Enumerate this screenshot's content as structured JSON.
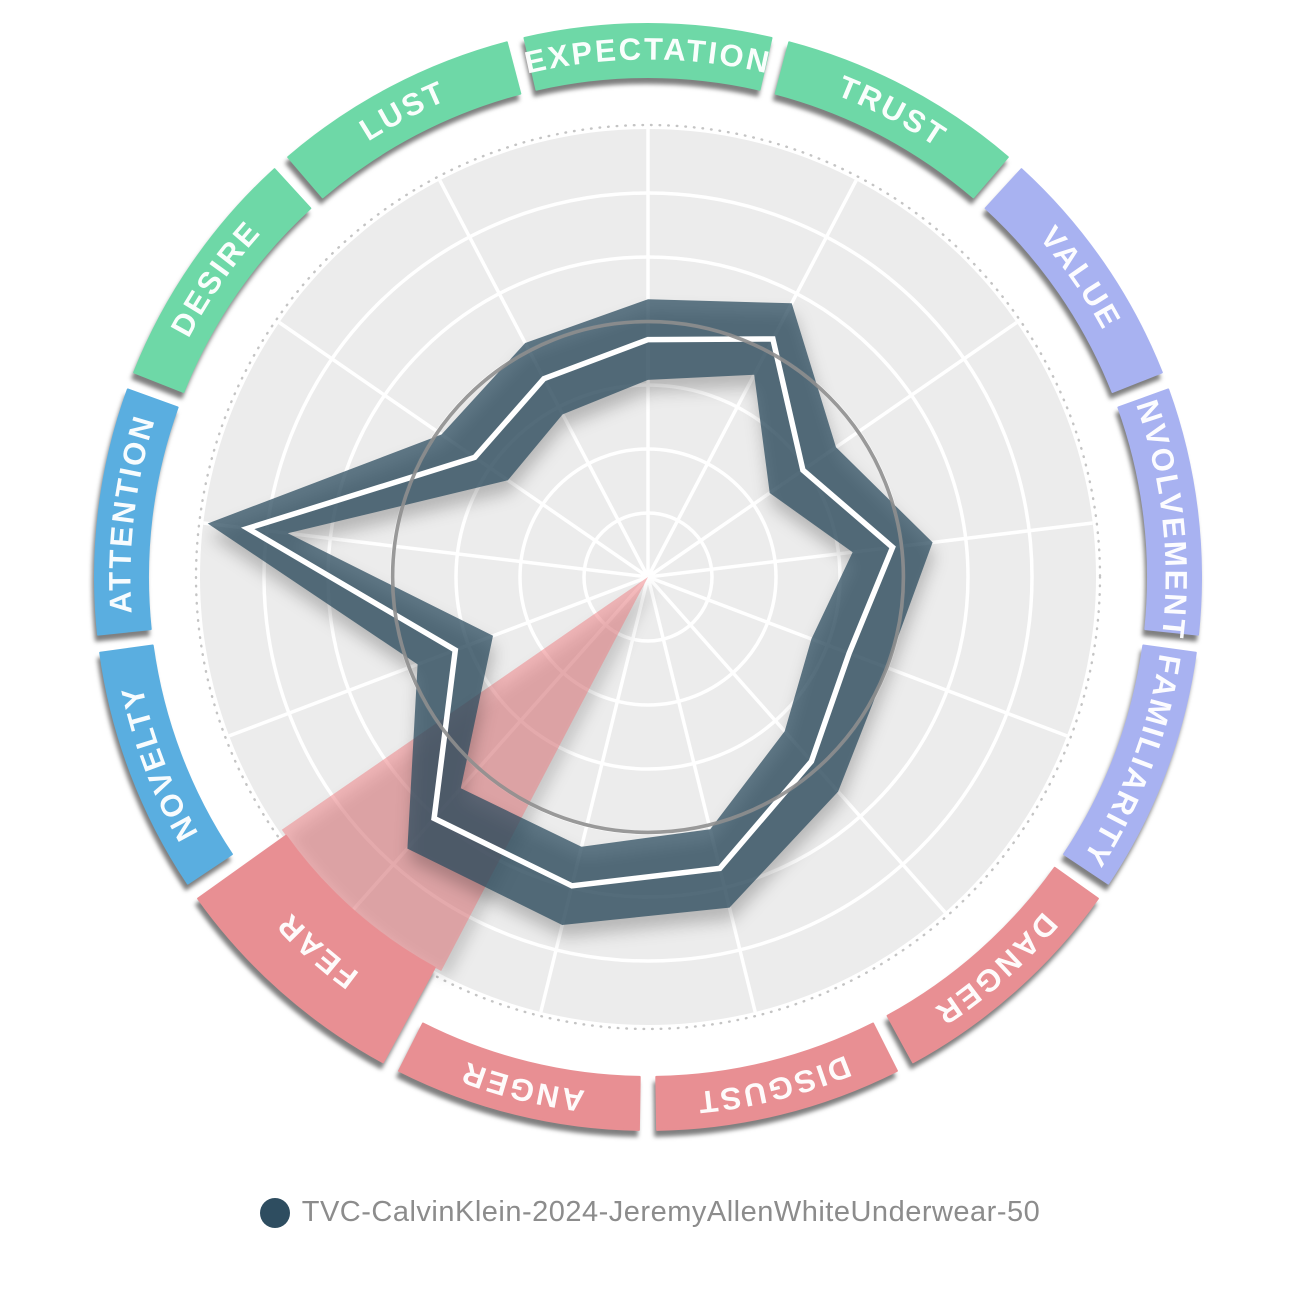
{
  "chart_data": {
    "type": "radar",
    "title": "",
    "categories": [
      "EXPECTATION",
      "TRUST",
      "VALUE",
      "INVOLVEMENT",
      "FAMILIARITY",
      "DANGER",
      "DISGUST",
      "ANGER",
      "FEAR",
      "NOVELTY",
      "ATTENTION",
      "DESIRE",
      "LUST"
    ],
    "category_colors": [
      "#6ed8a7",
      "#6ed8a7",
      "#a8b2f1",
      "#a8b2f1",
      "#a8b2f1",
      "#e88f93",
      "#e88f93",
      "#e88f93",
      "#e88f93",
      "#5aaee0",
      "#5aaee0",
      "#6ed8a7",
      "#6ed8a7"
    ],
    "series": [
      {
        "name": "TVC-CalvinKlein-2024-JeremyAllenWhiteUnderwear-50",
        "color": "#2e4d60",
        "band_opacity": 0.75,
        "values": [
          53,
          60,
          42,
          55,
          48,
          55,
          67,
          71,
          72,
          46,
          90,
          47,
          50
        ],
        "band_halfwidth": 9,
        "mean_line_color": "#ffffff"
      }
    ],
    "highlighted_category": "FEAR",
    "highlight_color": "#ef7b80",
    "highlight_opacity": 0.5,
    "benchmark_ring_value": 57,
    "axis": {
      "min": 0,
      "max": 100,
      "grid_rings": 6,
      "start_angle_deg": 90,
      "direction": "clockwise",
      "grid_color": "#ffffff",
      "plot_bg": "#ececec",
      "benchmark_color": "#8e8e8e",
      "outer_dotted_color": "#c4c4c4"
    },
    "legend_position": "bottom"
  },
  "legend": {
    "label": "TVC-CalvinKlein-2024-JeremyAllenWhiteUnderwear-50",
    "marker_color": "#2e4d60"
  }
}
